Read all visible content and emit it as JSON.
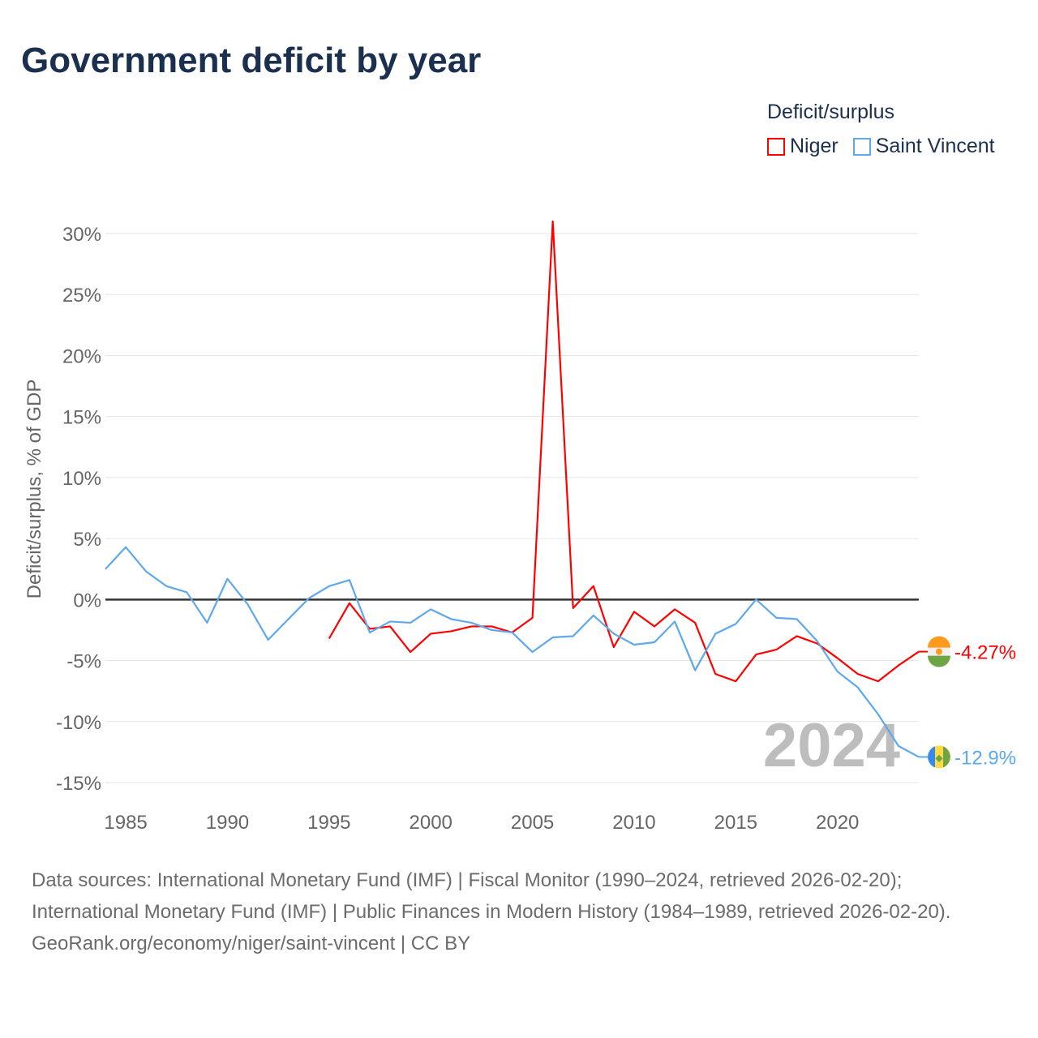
{
  "title": "Government deficit by year",
  "legend_title": "Deficit/surplus",
  "colors": {
    "niger": "#ff0000",
    "svg": "#5ea8ec",
    "title": "#1b2f4e"
  },
  "chart_data": {
    "type": "line",
    "title": "Government deficit by year",
    "ylabel": "Deficit/surplus, % of GDP",
    "xlabel": "",
    "xlim": [
      1984,
      2024
    ],
    "ylim": [
      -15,
      30
    ],
    "y_ticks": [
      30,
      25,
      20,
      15,
      10,
      5,
      0,
      -5,
      -10,
      -15
    ],
    "y_tick_labels": [
      "30%",
      "25%",
      "20%",
      "15%",
      "10%",
      "5%",
      "0%",
      "-5%",
      "-10%",
      "-15%"
    ],
    "x_ticks": [
      1985,
      1990,
      1995,
      2000,
      2005,
      2010,
      2015,
      2020
    ],
    "x_tick_labels": [
      "1985",
      "1990",
      "1995",
      "2000",
      "2005",
      "2010",
      "2015",
      "2020"
    ],
    "grid": true,
    "legend_position": "top-right",
    "year_annotation": "2024",
    "series": [
      {
        "name": "Niger",
        "color": "#ff0000",
        "start_year": 1995,
        "end_label": "-4.27%",
        "values": [
          -3.2,
          -0.3,
          -2.4,
          -2.2,
          -4.3,
          -2.8,
          -2.6,
          -2.2,
          -2.2,
          -2.7,
          -1.5,
          31.0,
          -0.7,
          1.1,
          -3.9,
          -1.0,
          -2.2,
          -0.8,
          -1.9,
          -6.1,
          -6.7,
          -4.5,
          -4.1,
          -3.0,
          -3.6,
          -4.8,
          -6.1,
          -6.7,
          -5.4,
          -4.27
        ]
      },
      {
        "name": "Saint Vincent",
        "color": "#5ea8ec",
        "start_year": 1984,
        "end_label": "-12.9%",
        "values": [
          2.5,
          4.3,
          2.3,
          1.1,
          0.6,
          -1.9,
          1.7,
          -0.4,
          -3.3,
          -1.6,
          0.1,
          1.1,
          1.6,
          -2.7,
          -1.8,
          -1.9,
          -0.8,
          -1.6,
          -1.9,
          -2.5,
          -2.7,
          -4.3,
          -3.1,
          -3.0,
          -1.3,
          -2.8,
          -3.7,
          -3.5,
          -1.8,
          -5.8,
          -2.8,
          -2.0,
          0.0,
          -1.5,
          -1.6,
          -3.4,
          -5.9,
          -7.2,
          -9.4,
          -12.0,
          -12.9
        ]
      }
    ]
  },
  "footer": {
    "sources": "Data sources: International Monetary Fund (IMF) | Fiscal Monitor (1990–2024, retrieved 2026-02-20); International Monetary Fund (IMF) | Public Finances in Modern History (1984–1989, retrieved 2026-02-20).",
    "link": "GeoRank.org/economy/niger/saint-vincent | CC BY"
  }
}
